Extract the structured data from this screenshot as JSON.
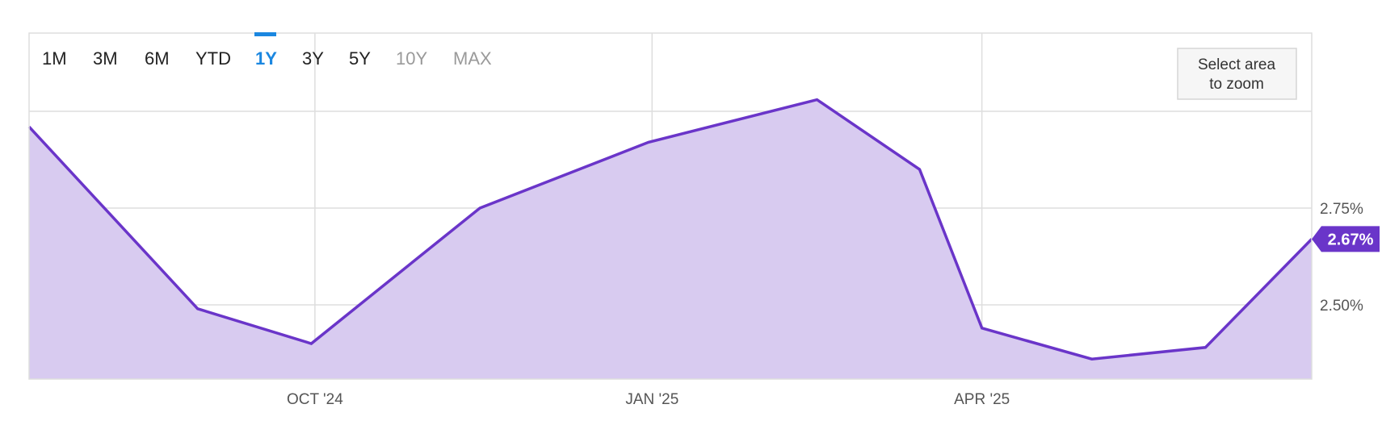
{
  "range_selector": {
    "options": [
      {
        "label": "1M",
        "state": "normal"
      },
      {
        "label": "3M",
        "state": "normal"
      },
      {
        "label": "6M",
        "state": "normal"
      },
      {
        "label": "YTD",
        "state": "normal"
      },
      {
        "label": "1Y",
        "state": "active"
      },
      {
        "label": "3Y",
        "state": "normal"
      },
      {
        "label": "5Y",
        "state": "normal"
      },
      {
        "label": "10Y",
        "state": "disabled"
      },
      {
        "label": "MAX",
        "state": "disabled"
      }
    ],
    "active_color": "#1b87e0"
  },
  "zoom_button": {
    "line1": "Select area",
    "line2": "to zoom"
  },
  "last_value_label": "2.67%",
  "colors": {
    "line": "#6a35c9",
    "fill": "#d8cbf0",
    "badge": "#6a35c9",
    "grid": "#dedede"
  },
  "chart_data": {
    "type": "area",
    "title": "",
    "xlabel": "",
    "ylabel": "",
    "x": [
      "2024-07-15",
      "2024-08-30",
      "2024-09-30",
      "2024-11-15",
      "2024-12-31",
      "2025-02-15",
      "2025-03-15",
      "2025-04-01",
      "2025-05-01",
      "2025-06-01",
      "2025-06-30"
    ],
    "series": [
      {
        "values": [
          2.96,
          2.49,
          2.4,
          2.75,
          2.92,
          3.03,
          2.85,
          2.44,
          2.36,
          2.39,
          2.67
        ]
      }
    ],
    "x_ticks": [
      {
        "date": "2024-10-01",
        "label": "OCT '24"
      },
      {
        "date": "2025-01-01",
        "label": "JAN '25"
      },
      {
        "date": "2025-04-01",
        "label": "APR '25"
      }
    ],
    "y_ticks": [
      {
        "value": 2.5,
        "label": "2.50%"
      },
      {
        "value": 2.75,
        "label": "2.75%"
      }
    ],
    "grid": true,
    "y_axis_position": "right"
  }
}
